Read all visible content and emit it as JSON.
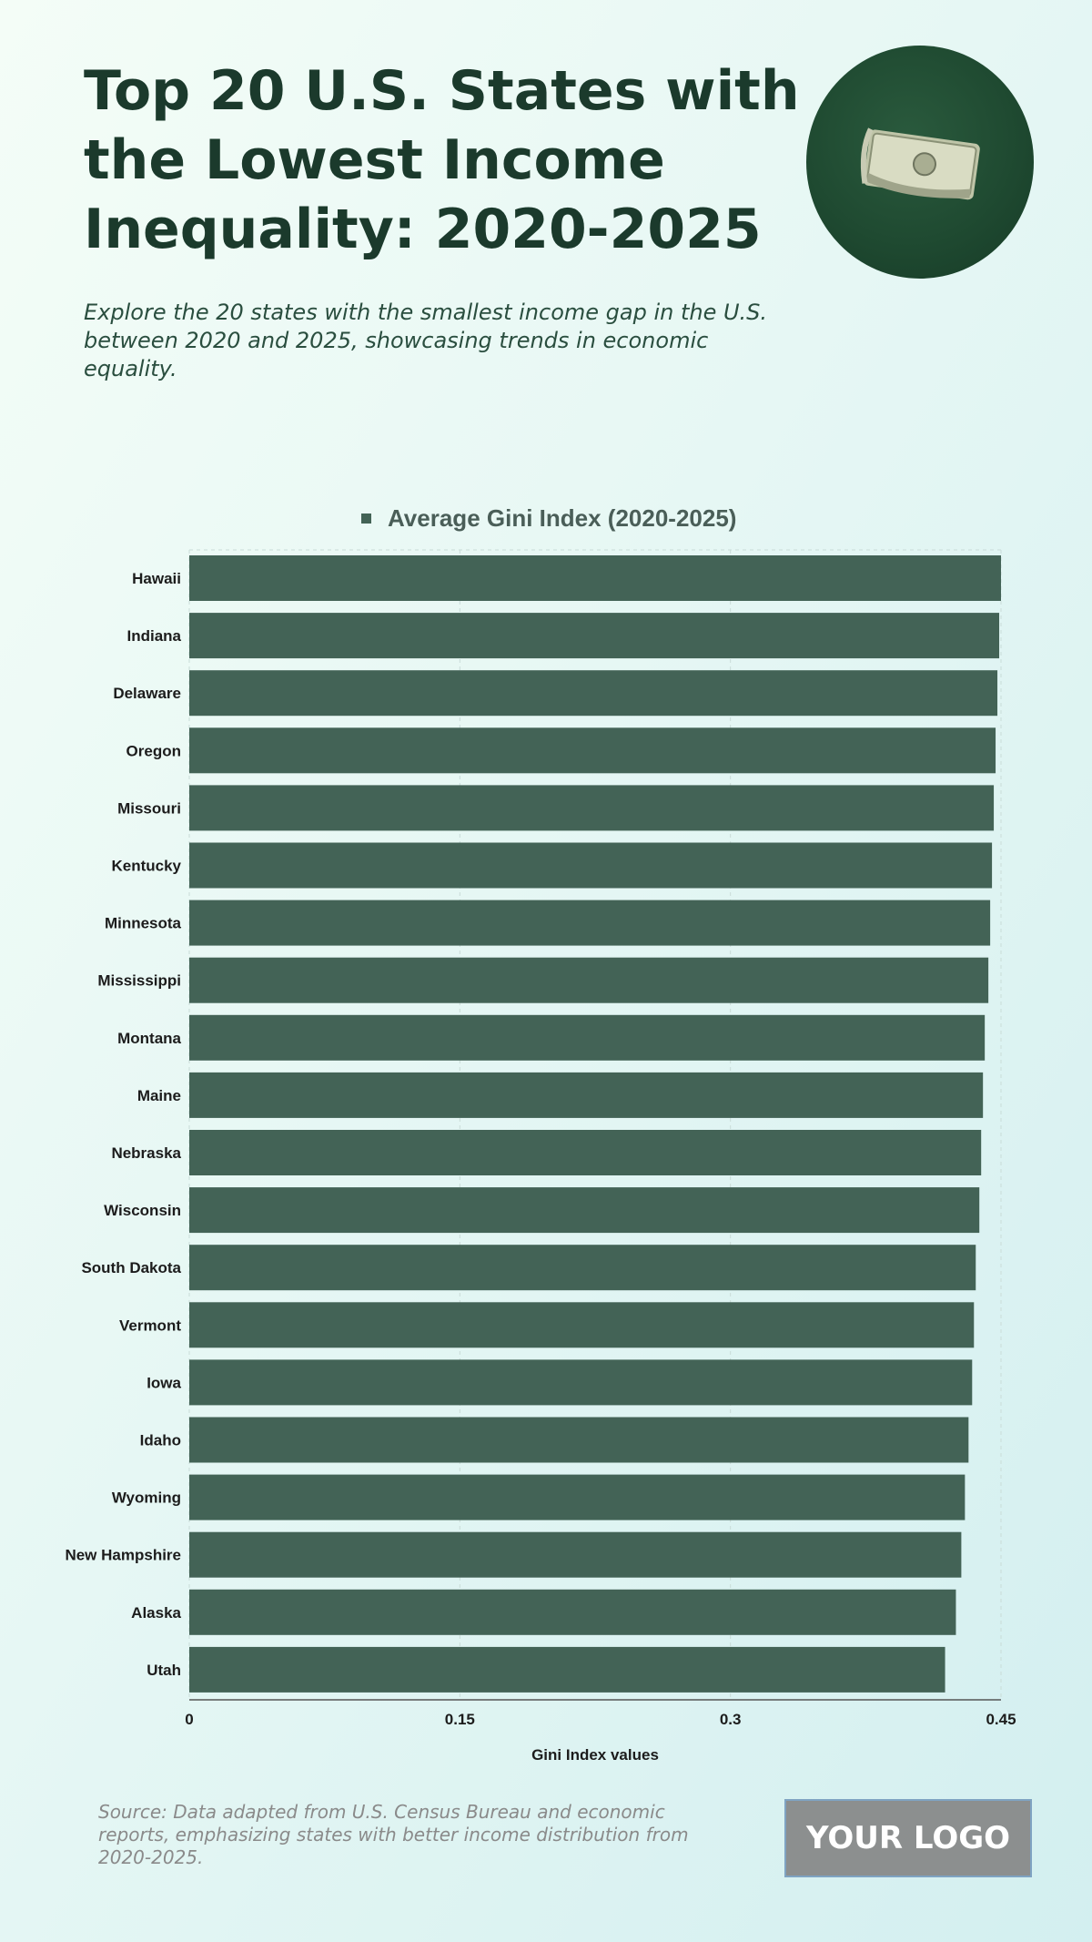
{
  "header": {
    "title": "Top 20 U.S. States with the Lowest Income Inequality: 2020-2025",
    "subtitle": "Explore the 20 states with the smallest income gap in the U.S. between 2020 and 2025, showcasing trends in economic equality."
  },
  "footer": {
    "source": "Source: Data adapted from U.S. Census Bureau and economic reports, emphasizing states with better income distribution from 2020-2025.",
    "logo_text": "YOUR LOGO"
  },
  "colors": {
    "bar": "#436356",
    "title": "#1b3a2c",
    "grid": "#c9dcd8"
  },
  "chart_data": {
    "type": "bar",
    "orientation": "horizontal",
    "legend": "Average Gini Index (2020-2025)",
    "xlabel": "Gini Index values",
    "ylabel": "",
    "xlim": [
      0,
      0.45
    ],
    "xticks": [
      0,
      0.15,
      0.3,
      0.45
    ],
    "xtick_labels": [
      "0",
      "0.15",
      "0.3",
      "0.45"
    ],
    "categories": [
      "Hawaii",
      "Indiana",
      "Delaware",
      "Oregon",
      "Missouri",
      "Kentucky",
      "Minnesota",
      "Mississippi",
      "Montana",
      "Maine",
      "Nebraska",
      "Wisconsin",
      "South Dakota",
      "Vermont",
      "Iowa",
      "Idaho",
      "Wyoming",
      "New Hampshire",
      "Alaska",
      "Utah"
    ],
    "values": [
      0.45,
      0.449,
      0.448,
      0.447,
      0.446,
      0.445,
      0.444,
      0.443,
      0.441,
      0.44,
      0.439,
      0.438,
      0.436,
      0.435,
      0.434,
      0.432,
      0.43,
      0.428,
      0.425,
      0.419
    ]
  }
}
